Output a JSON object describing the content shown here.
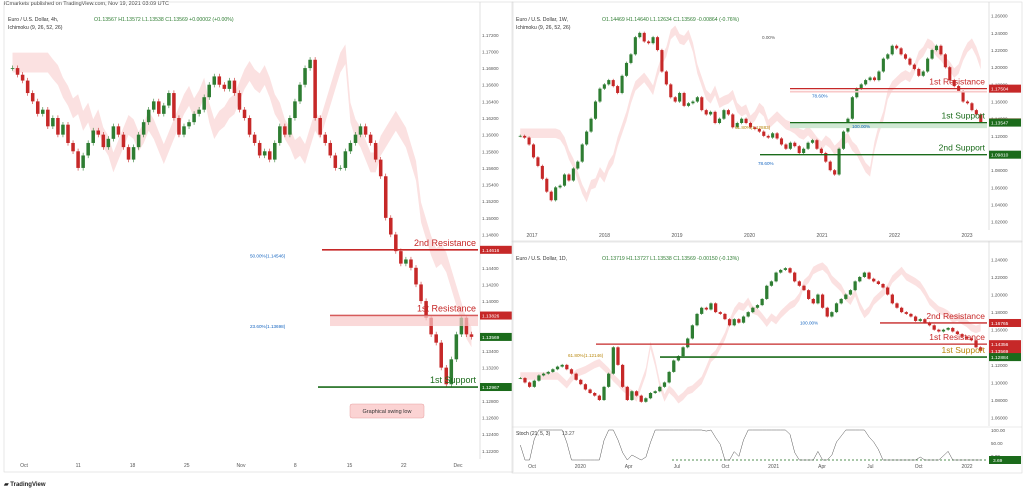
{
  "header": "ICmarkets published on TradingView.com, Nov 19, 2021 03:09 UTC",
  "footer": "TradingView",
  "colors": {
    "up": "#26a69a",
    "down": "#ef5350",
    "bull": "#2e7d32",
    "bear": "#c62828",
    "cloud": "#f8c9c9",
    "cloudG": "#cfe8d3",
    "res": "#c62828",
    "sup": "#1b6b1b"
  },
  "panels": [
    {
      "id": "p4h",
      "title": "Euro / U.S. Dollar, 4h,",
      "indicator": "Ichimoku (9, 26, 52, 26)",
      "ohlc": "O1.13567  H1.13572  L1.13538  C1.13569  +0.00002 (+0.00%)",
      "y_ticks": [
        "1.17200",
        "1.17000",
        "1.16800",
        "1.16600",
        "1.16400",
        "1.16200",
        "1.16000",
        "1.15800",
        "1.15600",
        "1.15400",
        "1.15200",
        "1.15000",
        "1.14800",
        "1.14600",
        "1.14400",
        "1.14200",
        "1.14000",
        "1.13800",
        "1.13600",
        "1.13400",
        "1.13200",
        "1.13000",
        "1.12800",
        "1.12600",
        "1.12400",
        "1.12200"
      ],
      "x_ticks": [
        "Oct",
        "11",
        "18",
        "25",
        "Nov",
        "8",
        "15",
        "22",
        "Dec"
      ],
      "price_tags": [
        {
          "text": "1.14616",
          "kind": "res"
        },
        {
          "text": "1.13826",
          "kind": "res"
        },
        {
          "text": "1.13569",
          "kind": "price"
        },
        {
          "text": "1.12967",
          "kind": "sup"
        }
      ],
      "labels": {
        "res2": "2nd Resistance",
        "res1": "1st Resistance",
        "sup1": "1st Support",
        "fib50": "50.00%(1.14546)",
        "fib23": "23.60%(1.13698)",
        "swing": "Graphical swing low"
      }
    },
    {
      "id": "p1w",
      "title": "Euro / U.S. Dollar, 1W,",
      "indicator": "Ichimoku (9, 26, 52, 26)",
      "ohlc": "O1.14469  H1.14640  L1.12634  C1.13569  -0.00864 (-0.76%)",
      "y_ticks": [
        "1.26000",
        "1.24000",
        "1.22000",
        "1.20000",
        "1.18000",
        "1.16000",
        "1.14000",
        "1.12000",
        "1.10000",
        "1.08000",
        "1.06000",
        "1.04000",
        "1.02000"
      ],
      "x_ticks": [
        "2017",
        "2018",
        "2019",
        "2020",
        "2021",
        "2022",
        "2023"
      ],
      "price_tags": [
        {
          "text": "1.17504",
          "kind": "res"
        },
        {
          "text": "1.13569",
          "kind": "res"
        },
        {
          "text": "1.13547",
          "kind": "sup"
        },
        {
          "text": "1.09810",
          "kind": "sup"
        }
      ],
      "labels": {
        "res1": "1st Resistance",
        "sup1": "1st Support",
        "sup2": "2nd Support",
        "fib0": "0.00%",
        "fib78": "78.60%",
        "fib61": "61.80%(1.12883)",
        "fib100": "100.00%",
        "fib78b": "78.60%"
      }
    },
    {
      "id": "p1d",
      "title": "Euro / U.S. Dollar, 1D,",
      "indicator": "",
      "ohlc": "O1.13719  H1.13727  L1.13538  C1.13569  -0.00150 (-0.13%)",
      "y_ticks": [
        "1.24000",
        "1.22000",
        "1.20000",
        "1.18000",
        "1.16000",
        "1.14000",
        "1.12000",
        "1.10000",
        "1.08000",
        "1.06000"
      ],
      "x_ticks": [
        "Oct",
        "2020",
        "Apr",
        "Jul",
        "Oct",
        "2021",
        "Apr",
        "Jul",
        "Oct",
        "2022"
      ],
      "price_tags": [
        {
          "text": "1.16765",
          "kind": "res"
        },
        {
          "text": "1.14356",
          "kind": "res"
        },
        {
          "text": "1.13569",
          "kind": "res"
        },
        {
          "text": "1.12884",
          "kind": "sup"
        }
      ],
      "labels": {
        "res2": "2nd Resistance",
        "res1": "1st Resistance",
        "sup1": "1st Support",
        "fib100": "100.00%",
        "fib61": "61.80%(1.12146)"
      },
      "stoch": {
        "label": "Stoch (21, 5, 3)",
        "value": "13.27",
        "ticks": [
          "100.00",
          "50.00",
          "0.00"
        ],
        "tag": "3.69"
      }
    }
  ],
  "chart_data": [
    {
      "type": "candlestick",
      "title": "Euro / U.S. Dollar, 4h",
      "ylim": [
        1.1215,
        1.1745
      ],
      "close": [
        1.168,
        1.1672,
        1.1665,
        1.165,
        1.164,
        1.1625,
        1.163,
        1.161,
        1.162,
        1.16,
        1.1612,
        1.159,
        1.158,
        1.156,
        1.1575,
        1.159,
        1.1605,
        1.16,
        1.1585,
        1.1595,
        1.161,
        1.16,
        1.1585,
        1.157,
        1.1585,
        1.16,
        1.1615,
        1.163,
        1.164,
        1.1625,
        1.1635,
        1.165,
        1.162,
        1.16,
        1.161,
        1.1615,
        1.1625,
        1.163,
        1.1645,
        1.166,
        1.167,
        1.166,
        1.1655,
        1.1665,
        1.165,
        1.163,
        1.162,
        1.16,
        1.159,
        1.1575,
        1.158,
        1.157,
        1.159,
        1.161,
        1.16,
        1.162,
        1.164,
        1.166,
        1.168,
        1.169,
        1.162,
        1.16,
        1.159,
        1.1575,
        1.156,
        1.156,
        1.158,
        1.159,
        1.16,
        1.161,
        1.16,
        1.159,
        1.157,
        1.155,
        1.15,
        1.148,
        1.146,
        1.1445,
        1.145,
        1.144,
        1.142,
        1.14,
        1.138,
        1.136,
        1.135,
        1.132,
        1.13,
        1.133,
        1.136,
        1.138,
        1.136,
        1.1357
      ]
    },
    {
      "type": "candlestick",
      "title": "Euro / U.S. Dollar, 1W",
      "ylim": [
        1.015,
        1.262
      ],
      "close": [
        1.12,
        1.118,
        1.11,
        1.095,
        1.085,
        1.07,
        1.055,
        1.045,
        1.06,
        1.062,
        1.075,
        1.068,
        1.082,
        1.09,
        1.11,
        1.125,
        1.14,
        1.16,
        1.175,
        1.18,
        1.185,
        1.178,
        1.17,
        1.19,
        1.205,
        1.215,
        1.235,
        1.24,
        1.23,
        1.228,
        1.235,
        1.22,
        1.195,
        1.18,
        1.165,
        1.16,
        1.17,
        1.155,
        1.158,
        1.16,
        1.165,
        1.15,
        1.145,
        1.148,
        1.135,
        1.14,
        1.15,
        1.145,
        1.13,
        1.135,
        1.14,
        1.135,
        1.13,
        1.128,
        1.125,
        1.12,
        1.118,
        1.123,
        1.117,
        1.11,
        1.105,
        1.112,
        1.108,
        1.1,
        1.105,
        1.112,
        1.115,
        1.105,
        1.1,
        1.09,
        1.08,
        1.075,
        1.105,
        1.125,
        1.14,
        1.165,
        1.175,
        1.18,
        1.185,
        1.188,
        1.185,
        1.195,
        1.21,
        1.215,
        1.225,
        1.222,
        1.215,
        1.21,
        1.203,
        1.198,
        1.19,
        1.195,
        1.21,
        1.22,
        1.225,
        1.215,
        1.2,
        1.185,
        1.178,
        1.172,
        1.16,
        1.158,
        1.15,
        1.145,
        1.136
      ]
    },
    {
      "type": "candlestick",
      "title": "Euro / U.S. Dollar, 1D",
      "ylim": [
        1.055,
        1.245
      ],
      "close": [
        1.105,
        1.1,
        1.095,
        1.102,
        1.108,
        1.11,
        1.112,
        1.115,
        1.118,
        1.12,
        1.115,
        1.11,
        1.103,
        1.098,
        1.092,
        1.088,
        1.085,
        1.08,
        1.095,
        1.11,
        1.14,
        1.12,
        1.095,
        1.08,
        1.09,
        1.085,
        1.078,
        1.082,
        1.088,
        1.09,
        1.095,
        1.1,
        1.112,
        1.125,
        1.13,
        1.14,
        1.15,
        1.165,
        1.178,
        1.185,
        1.183,
        1.19,
        1.18,
        1.178,
        1.172,
        1.165,
        1.172,
        1.168,
        1.175,
        1.18,
        1.185,
        1.188,
        1.195,
        1.21,
        1.215,
        1.225,
        1.228,
        1.23,
        1.225,
        1.215,
        1.21,
        1.205,
        1.195,
        1.19,
        1.2,
        1.185,
        1.175,
        1.18,
        1.19,
        1.195,
        1.2,
        1.205,
        1.215,
        1.22,
        1.225,
        1.218,
        1.215,
        1.212,
        1.208,
        1.2,
        1.19,
        1.185,
        1.18,
        1.178,
        1.175,
        1.17,
        1.172,
        1.168,
        1.165,
        1.16,
        1.158,
        1.16,
        1.162,
        1.158,
        1.155,
        1.152,
        1.15,
        1.148,
        1.14,
        1.136
      ]
    }
  ]
}
